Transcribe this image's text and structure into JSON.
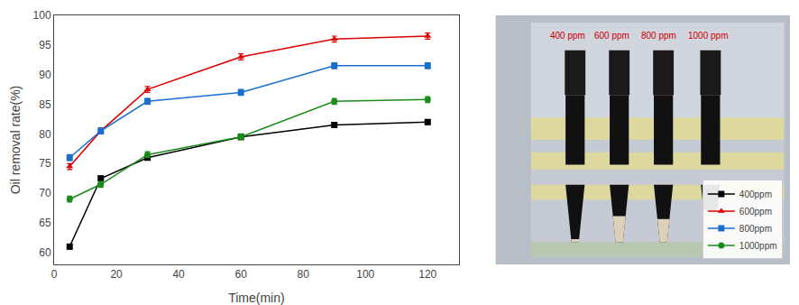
{
  "chart_data": {
    "type": "line",
    "xlabel": "Time(min)",
    "ylabel": "Oil removal rate(%)",
    "x": [
      5,
      15,
      30,
      60,
      90,
      120
    ],
    "series": [
      {
        "name": "400ppm",
        "color": "#000000",
        "marker": "square",
        "line_style": "solid",
        "values": [
          61.0,
          72.5,
          76.0,
          79.5,
          81.5,
          82.0
        ],
        "errors": [
          0.4,
          0.4,
          0.4,
          0.4,
          0.4,
          0.4
        ]
      },
      {
        "name": "600ppm",
        "color": "#dd0000",
        "marker": "triangle-up",
        "line_style": "solid",
        "values": [
          74.5,
          80.5,
          87.5,
          93.0,
          96.0,
          96.5
        ],
        "errors": [
          0.5,
          0.5,
          0.5,
          0.5,
          0.5,
          0.5
        ]
      },
      {
        "name": "800ppm",
        "color": "#1a6fcc",
        "marker": "square",
        "line_style": "solid",
        "values": [
          76.0,
          80.5,
          85.5,
          87.0,
          91.5,
          91.5
        ],
        "errors": [
          0.5,
          0.5,
          0.5,
          0.5,
          0.5,
          0.5
        ]
      },
      {
        "name": "1000ppm",
        "color": "#1a8c1a",
        "marker": "circle",
        "line_style": "solid",
        "values": [
          69.0,
          71.5,
          76.5,
          79.5,
          85.5,
          85.8
        ],
        "errors": [
          0.5,
          0.5,
          0.5,
          0.5,
          0.5,
          0.5
        ]
      }
    ],
    "xlim": [
      0,
      130
    ],
    "ylim": [
      58,
      100
    ],
    "xticks": [
      0,
      20,
      40,
      60,
      80,
      100,
      120
    ],
    "yticks": [
      60,
      65,
      70,
      75,
      80,
      85,
      90,
      95,
      100
    ],
    "grid": false,
    "legend": "lower right",
    "annotations": [
      {
        "text": "400 ppm",
        "color": "#cc0000"
      },
      {
        "text": "600 ppm",
        "color": "#cc0000"
      },
      {
        "text": "800 ppm",
        "color": "#cc0000"
      },
      {
        "text": "1000 ppm",
        "color": "#cc0000"
      }
    ]
  }
}
